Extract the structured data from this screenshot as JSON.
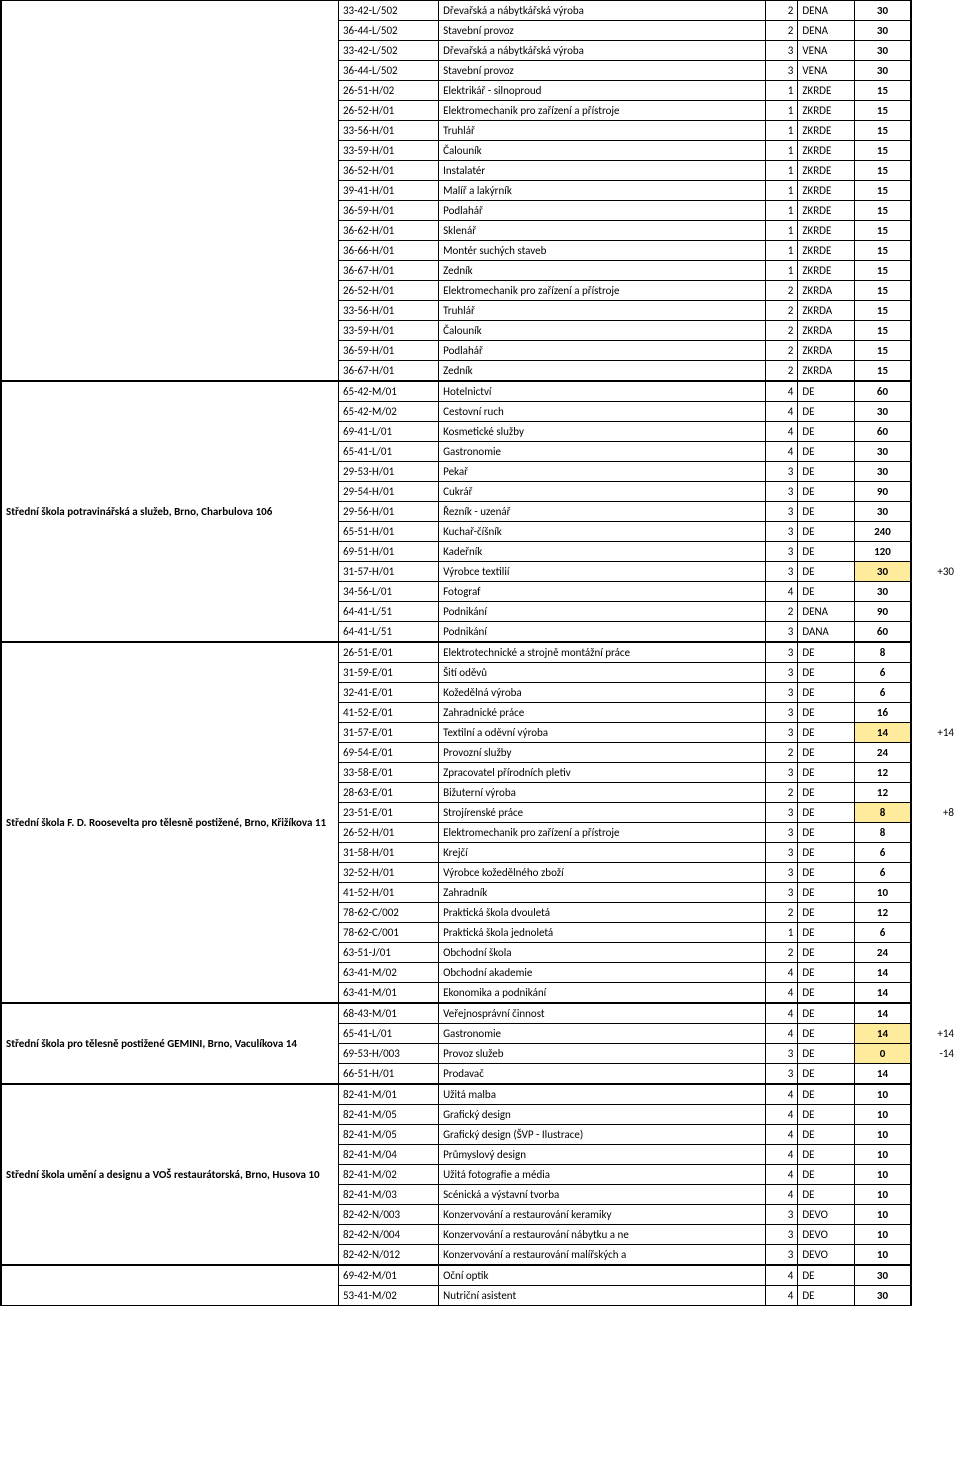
{
  "highlight_bg": "#ffeb9c",
  "groups": [
    {
      "school": "",
      "rows": [
        {
          "code": "33-42-L/502",
          "name": "Dřevařská a nábytkářská výroba",
          "len": 2,
          "form": "DENA",
          "num": 30
        },
        {
          "code": "36-44-L/502",
          "name": "Stavební provoz",
          "len": 2,
          "form": "DENA",
          "num": 30
        },
        {
          "code": "33-42-L/502",
          "name": "Dřevařská a nábytkářská výroba",
          "len": 3,
          "form": "VENA",
          "num": 30
        },
        {
          "code": "36-44-L/502",
          "name": "Stavební provoz",
          "len": 3,
          "form": "VENA",
          "num": 30
        },
        {
          "code": "26-51-H/02",
          "name": "Elektrikář - silnoproud",
          "len": 1,
          "form": "ZKRDE",
          "num": 15
        },
        {
          "code": "26-52-H/01",
          "name": "Elektromechanik pro zařízení a přístroje",
          "len": 1,
          "form": "ZKRDE",
          "num": 15
        },
        {
          "code": "33-56-H/01",
          "name": "Truhlář",
          "len": 1,
          "form": "ZKRDE",
          "num": 15
        },
        {
          "code": "33-59-H/01",
          "name": "Čalouník",
          "len": 1,
          "form": "ZKRDE",
          "num": 15
        },
        {
          "code": "36-52-H/01",
          "name": "Instalatér",
          "len": 1,
          "form": "ZKRDE",
          "num": 15
        },
        {
          "code": "39-41-H/01",
          "name": "Malíř a lakýrník",
          "len": 1,
          "form": "ZKRDE",
          "num": 15
        },
        {
          "code": "36-59-H/01",
          "name": "Podlahář",
          "len": 1,
          "form": "ZKRDE",
          "num": 15
        },
        {
          "code": "36-62-H/01",
          "name": "Sklenář",
          "len": 1,
          "form": "ZKRDE",
          "num": 15
        },
        {
          "code": "36-66-H/01",
          "name": "Montér suchých staveb",
          "len": 1,
          "form": "ZKRDE",
          "num": 15
        },
        {
          "code": "36-67-H/01",
          "name": "Zedník",
          "len": 1,
          "form": "ZKRDE",
          "num": 15
        },
        {
          "code": "26-52-H/01",
          "name": "Elektromechanik pro zařízení a přístroje",
          "len": 2,
          "form": "ZKRDA",
          "num": 15
        },
        {
          "code": "33-56-H/01",
          "name": "Truhlář",
          "len": 2,
          "form": "ZKRDA",
          "num": 15
        },
        {
          "code": "33-59-H/01",
          "name": "Čalouník",
          "len": 2,
          "form": "ZKRDA",
          "num": 15
        },
        {
          "code": "36-59-H/01",
          "name": "Podlahář",
          "len": 2,
          "form": "ZKRDA",
          "num": 15
        },
        {
          "code": "36-67-H/01",
          "name": "Zedník",
          "len": 2,
          "form": "ZKRDA",
          "num": 15
        }
      ]
    },
    {
      "school": "Střední škola potravinářská a služeb, Brno, Charbulova 106",
      "rows": [
        {
          "code": "65-42-M/01",
          "name": "Hotelnictví",
          "len": 4,
          "form": "DE",
          "num": 60
        },
        {
          "code": "65-42-M/02",
          "name": "Cestovní ruch",
          "len": 4,
          "form": "DE",
          "num": 30
        },
        {
          "code": "69-41-L/01",
          "name": "Kosmetické služby",
          "len": 4,
          "form": "DE",
          "num": 60
        },
        {
          "code": "65-41-L/01",
          "name": "Gastronomie",
          "len": 4,
          "form": "DE",
          "num": 30
        },
        {
          "code": "29-53-H/01",
          "name": "Pekař",
          "len": 3,
          "form": "DE",
          "num": 30
        },
        {
          "code": "29-54-H/01",
          "name": "Cukrář",
          "len": 3,
          "form": "DE",
          "num": 90
        },
        {
          "code": "29-56-H/01",
          "name": "Řezník - uzenář",
          "len": 3,
          "form": "DE",
          "num": 30
        },
        {
          "code": "65-51-H/01",
          "name": "Kuchař-číšník",
          "len": 3,
          "form": "DE",
          "num": 240
        },
        {
          "code": "69-51-H/01",
          "name": "Kadeřník",
          "len": 3,
          "form": "DE",
          "num": 120
        },
        {
          "code": "31-57-H/01",
          "name": "Výrobce textilií",
          "len": 3,
          "form": "DE",
          "num": 30,
          "hl": true,
          "note": "+30"
        },
        {
          "code": "34-56-L/01",
          "name": "Fotograf",
          "len": 4,
          "form": "DE",
          "num": 30
        },
        {
          "code": "64-41-L/51",
          "name": "Podnikání",
          "len": 2,
          "form": "DENA",
          "num": 90
        },
        {
          "code": "64-41-L/51",
          "name": "Podnikání",
          "len": 3,
          "form": "DANA",
          "num": 60
        }
      ]
    },
    {
      "school": "Střední škola F. D. Roosevelta pro tělesně postižené, Brno, Křižíkova 11",
      "rows": [
        {
          "code": "26-51-E/01",
          "name": "Elektrotechnické a strojně montážní práce",
          "len": 3,
          "form": "DE",
          "num": 8
        },
        {
          "code": "31-59-E/01",
          "name": "Šití oděvů",
          "len": 3,
          "form": "DE",
          "num": 6
        },
        {
          "code": "32-41-E/01",
          "name": "Kožedělná výroba",
          "len": 3,
          "form": "DE",
          "num": 6
        },
        {
          "code": "41-52-E/01",
          "name": "Zahradnické práce",
          "len": 3,
          "form": "DE",
          "num": 16
        },
        {
          "code": "31-57-E/01",
          "name": "Textilní a oděvní výroba",
          "len": 3,
          "form": "DE",
          "num": 14,
          "hl": true,
          "note": "+14"
        },
        {
          "code": "69-54-E/01",
          "name": "Provozní služby",
          "len": 2,
          "form": "DE",
          "num": 24
        },
        {
          "code": "33-58-E/01",
          "name": "Zpracovatel přírodních pletiv",
          "len": 3,
          "form": "DE",
          "num": 12
        },
        {
          "code": "28-63-E/01",
          "name": "Bižuterní výroba",
          "len": 2,
          "form": "DE",
          "num": 12
        },
        {
          "code": "23-51-E/01",
          "name": "Strojírenské práce",
          "len": 3,
          "form": "DE",
          "num": 8,
          "hl": true,
          "note": "+8"
        },
        {
          "code": "26-52-H/01",
          "name": "Elektromechanik pro zařízení a přístroje",
          "len": 3,
          "form": "DE",
          "num": 8
        },
        {
          "code": "31-58-H/01",
          "name": "Krejčí",
          "len": 3,
          "form": "DE",
          "num": 6
        },
        {
          "code": "32-52-H/01",
          "name": "Výrobce kožedělného zboží",
          "len": 3,
          "form": "DE",
          "num": 6
        },
        {
          "code": "41-52-H/01",
          "name": "Zahradník",
          "len": 3,
          "form": "DE",
          "num": 10
        },
        {
          "code": "78-62-C/002",
          "name": "Praktická škola dvouletá",
          "len": 2,
          "form": "DE",
          "num": 12
        },
        {
          "code": "78-62-C/001",
          "name": "Praktická škola jednoletá",
          "len": 1,
          "form": "DE",
          "num": 6
        },
        {
          "code": "63-51-J/01",
          "name": "Obchodní škola",
          "len": 2,
          "form": "DE",
          "num": 24
        },
        {
          "code": "63-41-M/02",
          "name": "Obchodní akademie",
          "len": 4,
          "form": "DE",
          "num": 14
        },
        {
          "code": "63-41-M/01",
          "name": "Ekonomika a podnikání",
          "len": 4,
          "form": "DE",
          "num": 14
        }
      ]
    },
    {
      "school": "Střední škola pro tělesně postižené GEMINI, Brno, Vaculíkova 14",
      "rows": [
        {
          "code": "68-43-M/01",
          "name": "Veřejnosprávní činnost",
          "len": 4,
          "form": "DE",
          "num": 14
        },
        {
          "code": "65-41-L/01",
          "name": "Gastronomie",
          "len": 4,
          "form": "DE",
          "num": 14,
          "hl": true,
          "note": "+14"
        },
        {
          "code": "69-53-H/003",
          "name": "Provoz služeb",
          "len": 3,
          "form": "DE",
          "num": 0,
          "hl": true,
          "note": "-14"
        },
        {
          "code": "66-51-H/01",
          "name": "Prodavač",
          "len": 3,
          "form": "DE",
          "num": 14
        }
      ]
    },
    {
      "school": "Střední škola umění a designu a VOŠ restaurátorská, Brno, Husova 10",
      "rows": [
        {
          "code": "82-41-M/01",
          "name": "Užitá malba",
          "len": 4,
          "form": "DE",
          "num": 10
        },
        {
          "code": "82-41-M/05",
          "name": "Grafický design",
          "len": 4,
          "form": "DE",
          "num": 10
        },
        {
          "code": "82-41-M/05",
          "name": "Grafický design (ŠVP - Ilustrace)",
          "len": 4,
          "form": "DE",
          "num": 10
        },
        {
          "code": "82-41-M/04",
          "name": "Průmyslový design",
          "len": 4,
          "form": "DE",
          "num": 10
        },
        {
          "code": "82-41-M/02",
          "name": "Užitá fotografie a média",
          "len": 4,
          "form": "DE",
          "num": 10
        },
        {
          "code": "82-41-M/03",
          "name": "Scénická a výstavní tvorba",
          "len": 4,
          "form": "DE",
          "num": 10
        },
        {
          "code": "82-42-N/003",
          "name": "Konzervování a restaurování keramiky",
          "len": 3,
          "form": "DEVO",
          "num": 10
        },
        {
          "code": "82-42-N/004",
          "name": "Konzervování a restaurování nábytku a ne",
          "len": 3,
          "form": "DEVO",
          "num": 10
        },
        {
          "code": "82-42-N/012",
          "name": "Konzervování a restaurování malířských a",
          "len": 3,
          "form": "DEVO",
          "num": 10
        }
      ]
    },
    {
      "school": "",
      "open": true,
      "rows": [
        {
          "code": "69-42-M/01",
          "name": "Oční optik",
          "len": 4,
          "form": "DE",
          "num": 30
        },
        {
          "code": "53-41-M/02",
          "name": "Nutriční asistent",
          "len": 4,
          "form": "DE",
          "num": 30
        }
      ]
    }
  ]
}
